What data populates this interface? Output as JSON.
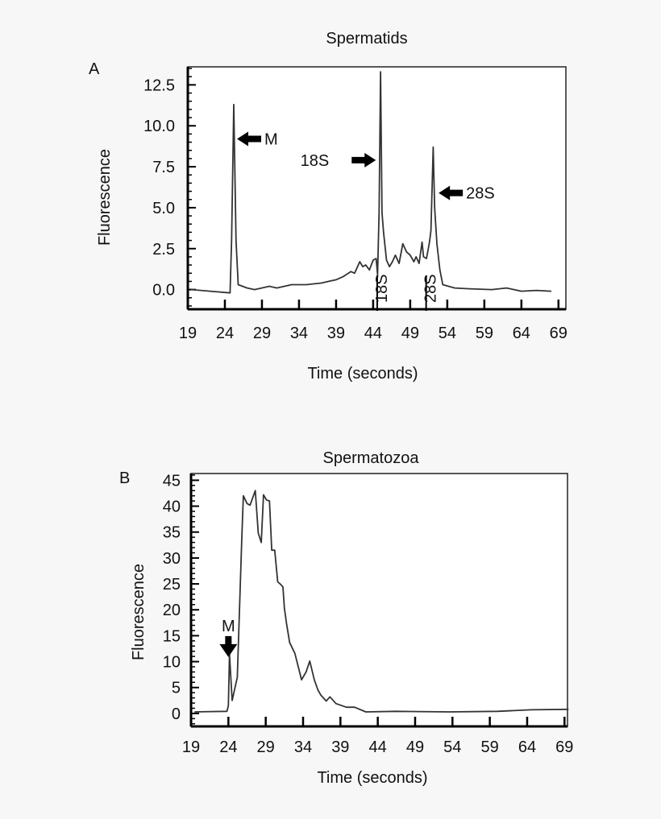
{
  "chart_data": [
    {
      "panel_label": "A",
      "type": "line",
      "title": "Spermatids",
      "xlabel": "Time (seconds)",
      "ylabel": "Fluorescence",
      "xlim": [
        19,
        70
      ],
      "ylim": [
        -1.2,
        13.6
      ],
      "xticks": [
        "19",
        "24",
        "29",
        "34",
        "39",
        "44",
        "49",
        "54",
        "59",
        "64",
        "69"
      ],
      "yticks": [
        "0.0",
        "2.5",
        "5.0",
        "7.5",
        "10.0",
        "12.5"
      ],
      "grid": false,
      "x": [
        19.5,
        22,
        24.7,
        24.9,
        25.2,
        25.5,
        25.8,
        27,
        28,
        30,
        31,
        33,
        35,
        37,
        38,
        39,
        40,
        41,
        41.5,
        42.2,
        42.6,
        43,
        43.5,
        44,
        44.4,
        44.6,
        44.8,
        45,
        45.2,
        45.4,
        45.8,
        46.2,
        46.6,
        47,
        47.5,
        48,
        48.5,
        49,
        49.5,
        49.8,
        50.2,
        50.6,
        50.8,
        51.2,
        51.6,
        51.8,
        52.1,
        52.3,
        52.6,
        53,
        53.4,
        55,
        57,
        60,
        62,
        64,
        66,
        68
      ],
      "y": [
        0,
        -0.1,
        -0.2,
        3,
        11.3,
        3,
        0.3,
        0.1,
        0.0,
        0.2,
        0.1,
        0.3,
        0.3,
        0.4,
        0.5,
        0.6,
        0.8,
        1.1,
        1.0,
        1.7,
        1.4,
        1.5,
        1.2,
        1.8,
        1.9,
        0.9,
        4.8,
        13.3,
        4.7,
        3.5,
        1.8,
        1.4,
        1.7,
        2.1,
        1.6,
        2.8,
        2.3,
        2.1,
        1.7,
        2.0,
        1.6,
        2.9,
        2.0,
        1.9,
        2.9,
        3.6,
        8.7,
        5.0,
        2.8,
        1.2,
        0.3,
        0.1,
        0.05,
        0.0,
        0.1,
        -0.1,
        -0.05,
        -0.1
      ],
      "annotations": [
        {
          "text": "M",
          "arrow": "left",
          "at_x": 25.2,
          "at_y": 9.2
        },
        {
          "text": "18S",
          "arrow": "right",
          "at_x": 44.8,
          "at_y": 7.9
        },
        {
          "text": "28S",
          "arrow": "left",
          "at_x": 52.4,
          "at_y": 5.9
        },
        {
          "text": "18S",
          "arrow": "marker",
          "at_x": 45.2,
          "at_y": -0.8
        },
        {
          "text": "28S",
          "arrow": "marker",
          "at_x": 51.8,
          "at_y": -0.8
        }
      ]
    },
    {
      "panel_label": "B",
      "type": "line",
      "title": "Spermatozoa",
      "xlabel": "Time (seconds)",
      "ylabel": "Fluorescence",
      "xlim": [
        19,
        69.4
      ],
      "ylim": [
        -2.5,
        46.3
      ],
      "xticks": [
        "19",
        "24",
        "29",
        "34",
        "39",
        "44",
        "49",
        "54",
        "59",
        "64",
        "69"
      ],
      "yticks": [
        "0",
        "5",
        "10",
        "15",
        "20",
        "25",
        "30",
        "35",
        "40",
        "45"
      ],
      "grid": false,
      "x": [
        19.5,
        23.8,
        24.0,
        24.15,
        24.5,
        25.2,
        25.8,
        26.0,
        26.5,
        26.9,
        27.6,
        28.0,
        28.4,
        28.7,
        29.1,
        29.5,
        29.8,
        30.2,
        30.6,
        31.0,
        31.3,
        31.5,
        31.8,
        32.2,
        32.9,
        33.8,
        34.4,
        34.9,
        35.5,
        36.0,
        36.4,
        37.1,
        37.6,
        38.4,
        39.8,
        40.9,
        42.4,
        46.4,
        53.6,
        60,
        64.5,
        69.5
      ],
      "y": [
        0.3,
        0.4,
        1.5,
        11.4,
        2.5,
        7,
        34,
        42,
        40.5,
        40.2,
        43,
        34.8,
        33,
        42.2,
        41.2,
        41,
        31.5,
        31.5,
        25.4,
        24.9,
        24.4,
        20.3,
        17.2,
        13.7,
        11.6,
        6.5,
        8,
        10.1,
        6.5,
        4.5,
        3.5,
        2.4,
        3.2,
        1.9,
        1.2,
        1.2,
        0.3,
        0.4,
        0.3,
        0.4,
        0.7,
        0.8
      ],
      "annotations": [
        {
          "text": "M",
          "arrow": "down",
          "at_x": 24.0,
          "at_y": 14
        }
      ]
    }
  ]
}
